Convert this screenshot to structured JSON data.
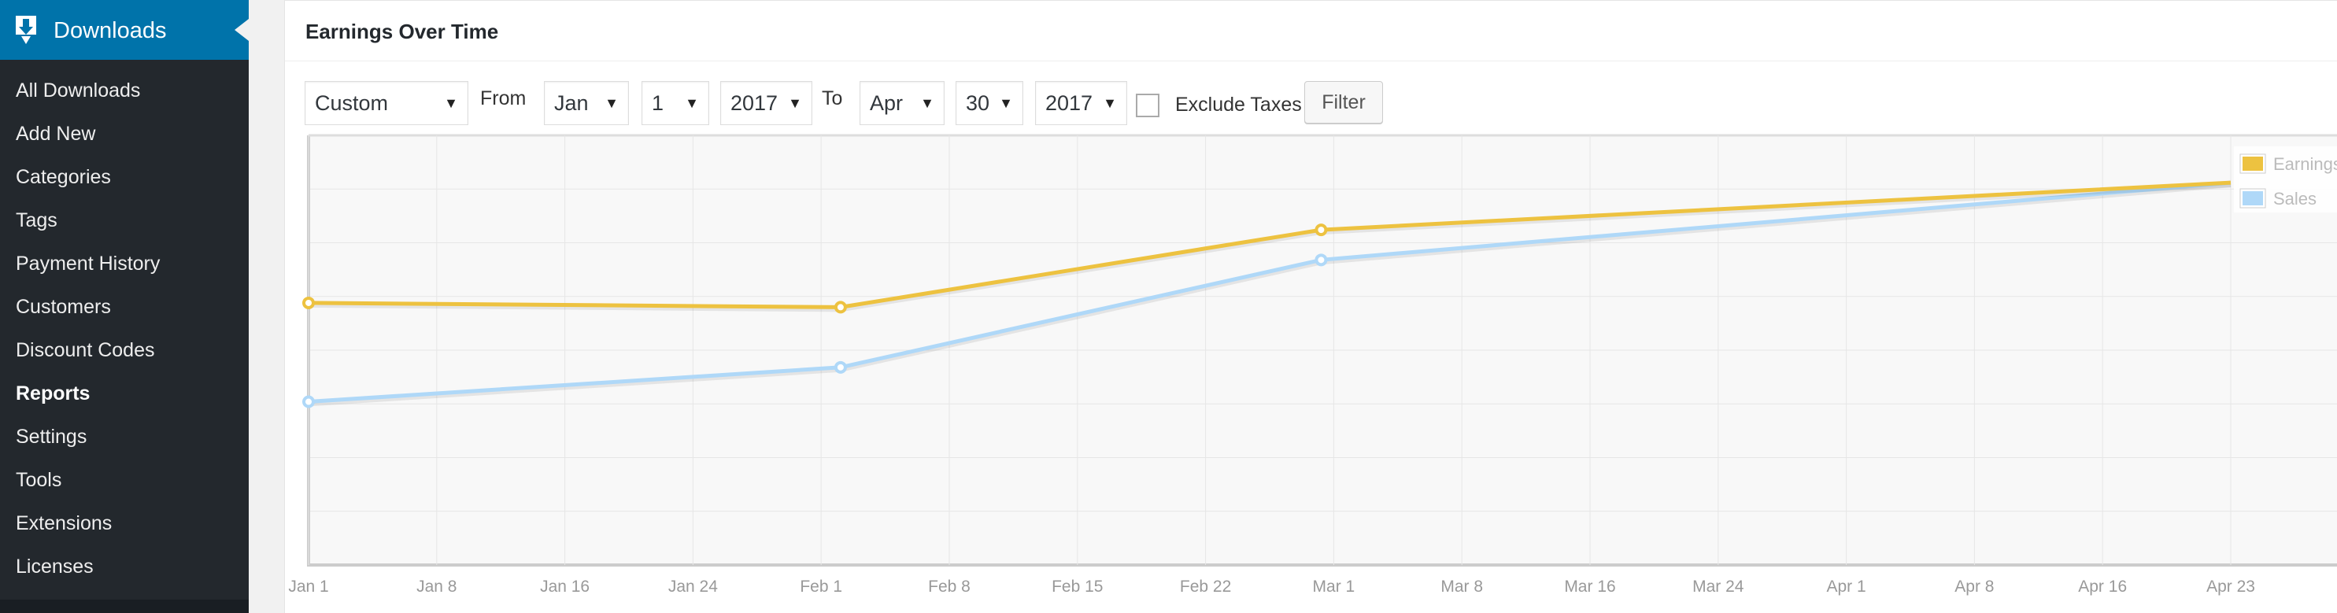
{
  "sidebar": {
    "header_label": "Downloads",
    "items": [
      {
        "label": "All Downloads"
      },
      {
        "label": "Add New"
      },
      {
        "label": "Categories"
      },
      {
        "label": "Tags"
      },
      {
        "label": "Payment History"
      },
      {
        "label": "Customers"
      },
      {
        "label": "Discount Codes"
      },
      {
        "label": "Reports",
        "current": true
      },
      {
        "label": "Settings"
      },
      {
        "label": "Tools"
      },
      {
        "label": "Extensions"
      },
      {
        "label": "Licenses"
      }
    ]
  },
  "panel": {
    "title": "Earnings Over Time"
  },
  "filters": {
    "range": "Custom",
    "from_label": "From",
    "from_month": "Jan",
    "from_day": "1",
    "from_year": "2017",
    "to_label": "To",
    "to_month": "Apr",
    "to_day": "30",
    "to_year": "2017",
    "exclude_taxes_label": "Exclude Taxes",
    "exclude_taxes_checked": false,
    "filter_button": "Filter"
  },
  "colors": {
    "accent": "#0073aa",
    "sidebar_bg": "#23282d",
    "earnings": "#edc240",
    "sales": "#afd8f8"
  },
  "chart_data": {
    "type": "line",
    "title": "",
    "xlabel": "",
    "ylabel": "",
    "x_ticks": [
      "Jan 1",
      "Jan 8",
      "Jan 16",
      "Jan 24",
      "Feb 1",
      "Feb 8",
      "Feb 15",
      "Feb 22",
      "Mar 1",
      "Mar 8",
      "Mar 16",
      "Mar 24",
      "Apr 1",
      "Apr 8",
      "Apr 16",
      "Apr 23"
    ],
    "xlim": [
      "2017-01-01",
      "2017-04-30"
    ],
    "grid": true,
    "legend_position": "top-right",
    "series": [
      {
        "name": "Earnings",
        "color": "#edc240",
        "x": [
          "2017-01-01",
          "2017-02-01",
          "2017-03-01",
          "2017-04-23"
        ],
        "y": [
          0.61,
          0.6,
          0.78,
          0.89
        ]
      },
      {
        "name": "Sales",
        "color": "#afd8f8",
        "x": [
          "2017-01-01",
          "2017-02-01",
          "2017-03-01",
          "2017-04-23"
        ],
        "y": [
          0.38,
          0.46,
          0.71,
          0.89
        ]
      }
    ],
    "ylim": [
      0,
      1
    ]
  }
}
